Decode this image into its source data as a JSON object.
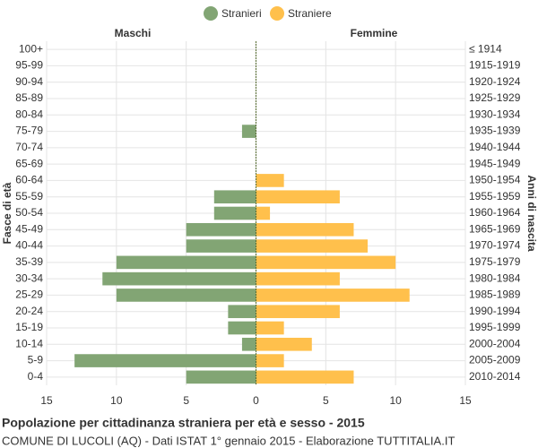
{
  "chart_data": {
    "type": "pyramid",
    "title": "Popolazione per cittadinanza straniera per età e sesso - 2015",
    "subtitle": "COMUNE DI LUCOLI (AQ) - Dati ISTAT 1° gennaio 2015 - Elaborazione TUTTITALIA.IT",
    "y_label": "Fasce di età",
    "y2_label": "Anni di nascita",
    "left_label": "Maschi",
    "right_label": "Femmine",
    "categories": [
      "100+",
      "95-99",
      "90-94",
      "85-89",
      "80-84",
      "75-79",
      "70-74",
      "65-69",
      "60-64",
      "55-59",
      "50-54",
      "45-49",
      "40-44",
      "35-39",
      "30-34",
      "25-29",
      "20-24",
      "15-19",
      "10-14",
      "5-9",
      "0-4"
    ],
    "birth_years": [
      "≤ 1914",
      "1915-1919",
      "1920-1924",
      "1925-1929",
      "1930-1934",
      "1935-1939",
      "1940-1944",
      "1945-1949",
      "1950-1954",
      "1955-1959",
      "1960-1964",
      "1965-1969",
      "1970-1974",
      "1975-1979",
      "1980-1984",
      "1985-1989",
      "1990-1994",
      "1995-1999",
      "2000-2004",
      "2005-2009",
      "2010-2014"
    ],
    "series": [
      {
        "name": "Stranieri",
        "color": "#82a574",
        "values": [
          0,
          0,
          0,
          0,
          0,
          1,
          0,
          0,
          0,
          3,
          3,
          5,
          5,
          10,
          11,
          10,
          2,
          2,
          1,
          13,
          5
        ]
      },
      {
        "name": "Straniere",
        "color": "#ffc04c",
        "values": [
          0,
          0,
          0,
          0,
          0,
          0,
          0,
          0,
          2,
          6,
          1,
          7,
          8,
          10,
          6,
          11,
          6,
          2,
          4,
          2,
          7
        ]
      }
    ],
    "xlim": [
      -15,
      15
    ],
    "xticks": [
      {
        "value": -15,
        "label": "15"
      },
      {
        "value": -10,
        "label": "10"
      },
      {
        "value": -5,
        "label": "5"
      },
      0,
      5,
      10,
      15
    ],
    "grid": true
  }
}
